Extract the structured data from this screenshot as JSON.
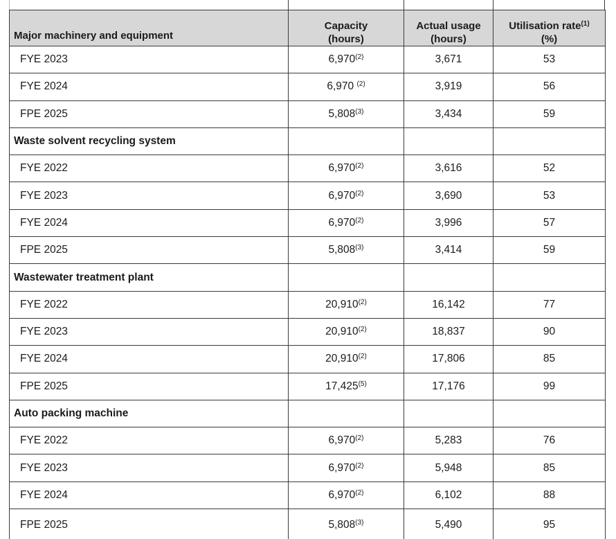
{
  "style": {
    "header_background": "#d7d7d7",
    "border_color": "#3a3a3a",
    "text_color": "#1b1b1b",
    "page_background": "#ffffff"
  },
  "table": {
    "header": {
      "equipment": "Major machinery and equipment",
      "capacity_line1": "Capacity",
      "capacity_line2": "(hours)",
      "usage_line1": "Actual usage",
      "usage_line2": "(hours)",
      "rate_line1": "Utilisation rate",
      "rate_sup": "(1)",
      "rate_line2": "(%)"
    },
    "rows": [
      {
        "type": "data",
        "label": "FYE 2023",
        "capacity": "6,970",
        "capacity_sup": "(2)",
        "capacity_space": false,
        "usage": "3,671",
        "rate": "53"
      },
      {
        "type": "data",
        "label": "FYE 2024",
        "capacity": "6,970",
        "capacity_sup": "(2)",
        "capacity_space": true,
        "usage": "3,919",
        "rate": "56"
      },
      {
        "type": "data",
        "label": "FPE 2025",
        "capacity": "5,808",
        "capacity_sup": "(3)",
        "capacity_space": false,
        "usage": "3,434",
        "rate": "59"
      },
      {
        "type": "section",
        "label": "Waste solvent recycling system"
      },
      {
        "type": "data",
        "label": "FYE 2022",
        "capacity": "6,970",
        "capacity_sup": "(2)",
        "capacity_space": false,
        "usage": "3,616",
        "rate": "52"
      },
      {
        "type": "data",
        "label": "FYE 2023",
        "capacity": "6,970",
        "capacity_sup": "(2)",
        "capacity_space": false,
        "usage": "3,690",
        "rate": "53"
      },
      {
        "type": "data",
        "label": "FYE 2024",
        "capacity": "6,970",
        "capacity_sup": "(2)",
        "capacity_space": false,
        "usage": "3,996",
        "rate": "57"
      },
      {
        "type": "data",
        "label": "FPE 2025",
        "capacity": "5,808",
        "capacity_sup": "(3)",
        "capacity_space": false,
        "usage": "3,414",
        "rate": "59"
      },
      {
        "type": "section",
        "label": "Wastewater treatment plant"
      },
      {
        "type": "data",
        "label": "FYE 2022",
        "capacity": "20,910",
        "capacity_sup": "(2)",
        "capacity_space": false,
        "usage": "16,142",
        "rate": "77"
      },
      {
        "type": "data",
        "label": "FYE 2023",
        "capacity": "20,910",
        "capacity_sup": "(2)",
        "capacity_space": false,
        "usage": "18,837",
        "rate": "90"
      },
      {
        "type": "data",
        "label": "FYE 2024",
        "capacity": "20,910",
        "capacity_sup": "(2)",
        "capacity_space": false,
        "usage": "17,806",
        "rate": "85"
      },
      {
        "type": "data",
        "label": "FPE 2025",
        "capacity": "17,425",
        "capacity_sup": "(5)",
        "capacity_space": false,
        "usage": "17,176",
        "rate": "99"
      },
      {
        "type": "section",
        "label": "Auto packing machine"
      },
      {
        "type": "data",
        "label": "FYE 2022",
        "capacity": "6,970",
        "capacity_sup": "(2)",
        "capacity_space": false,
        "usage": "5,283",
        "rate": "76"
      },
      {
        "type": "data",
        "label": "FYE 2023",
        "capacity": "6,970",
        "capacity_sup": "(2)",
        "capacity_space": false,
        "usage": "5,948",
        "rate": "85"
      },
      {
        "type": "data",
        "label": "FYE 2024",
        "capacity": "6,970",
        "capacity_sup": "(2)",
        "capacity_space": false,
        "usage": "6,102",
        "rate": "88"
      },
      {
        "type": "data",
        "label": "FPE 2025",
        "capacity": "5,808",
        "capacity_sup": "(3)",
        "capacity_space": false,
        "usage": "5,490",
        "rate": "95"
      }
    ]
  }
}
